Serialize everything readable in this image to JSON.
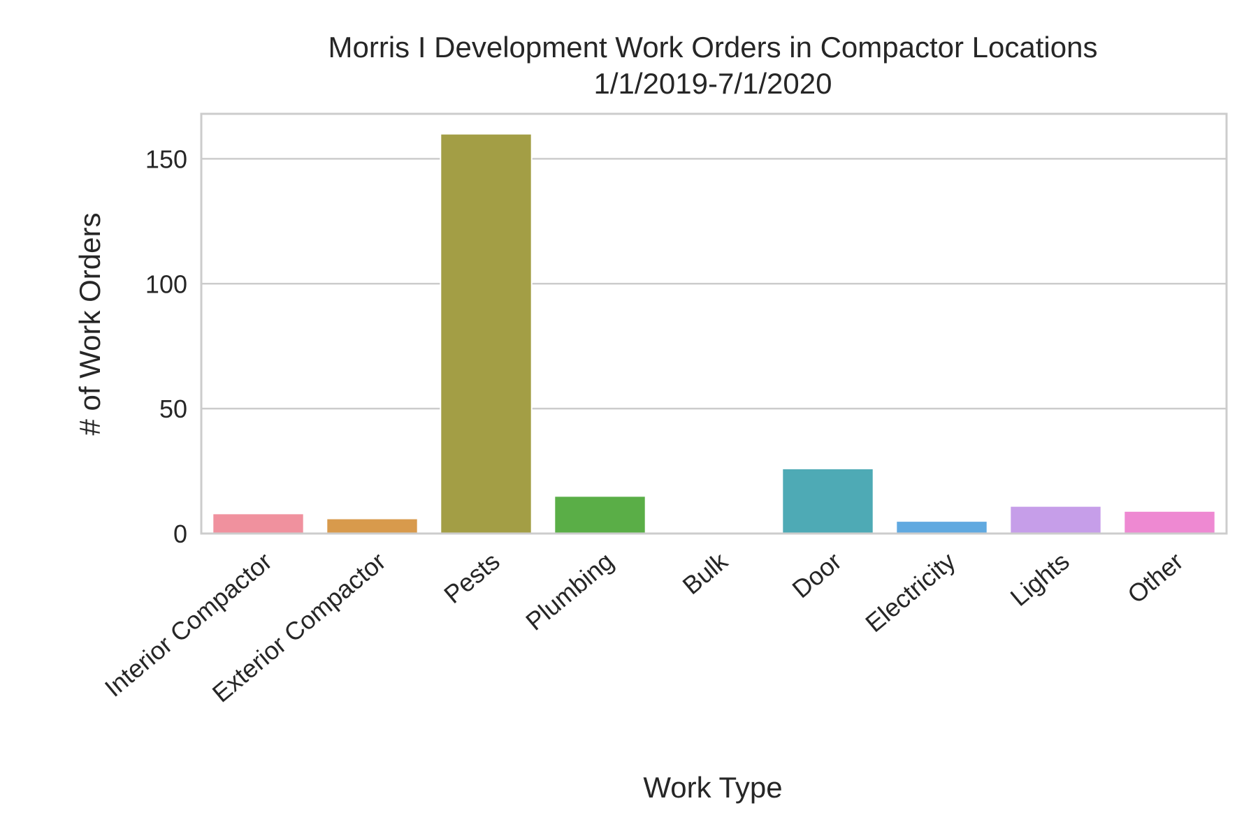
{
  "chart_data": {
    "type": "bar",
    "title": "Morris I Development Work Orders in Compactor Locations",
    "subtitle": "1/1/2019-7/1/2020",
    "xlabel": "Work Type",
    "ylabel": "# of Work Orders",
    "categories": [
      "Interior Compactor",
      "Exterior Compactor",
      "Pests",
      "Plumbing",
      "Bulk",
      "Door",
      "Electricity",
      "Lights",
      "Other"
    ],
    "values": [
      8,
      6,
      160,
      15,
      0,
      26,
      5,
      11,
      9
    ],
    "colors": [
      "#f0919e",
      "#d89a4c",
      "#a39e45",
      "#5aae47",
      "#57b07f",
      "#4eaab5",
      "#60a9e0",
      "#c69ee9",
      "#ee89d2"
    ],
    "ylim": [
      0,
      168
    ],
    "yticks": [
      0,
      50,
      100,
      150
    ],
    "grid": true,
    "legend": "none"
  }
}
